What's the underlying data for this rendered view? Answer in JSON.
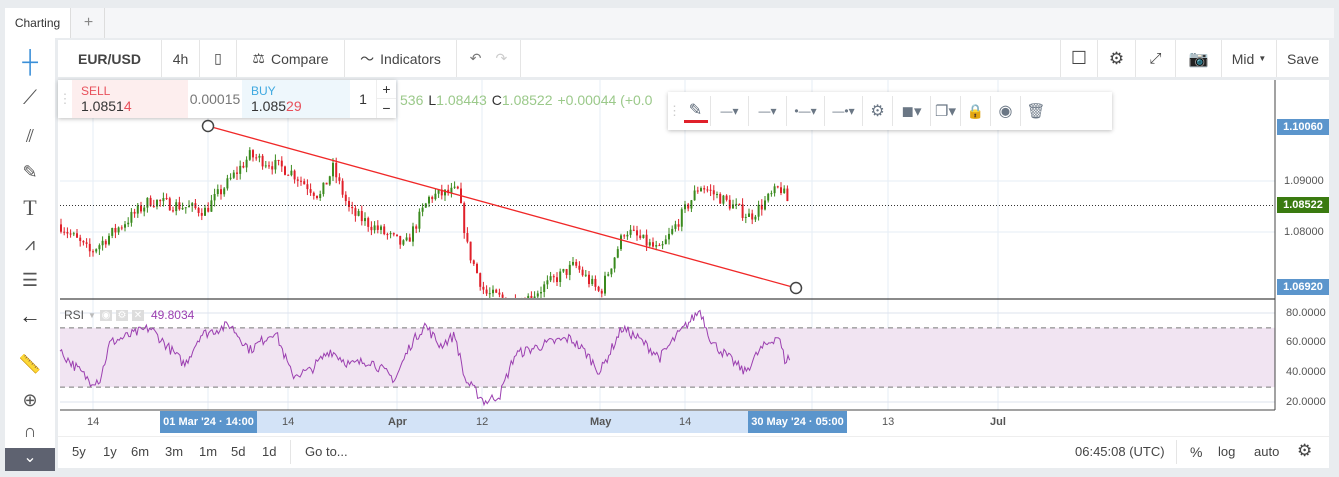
{
  "tabs": {
    "active": "Charting",
    "add": "+"
  },
  "toolbar": {
    "symbol": "EUR/USD",
    "interval": "4h",
    "compare": "Compare",
    "indicators": "Indicators",
    "price_source": "Mid",
    "save": "Save"
  },
  "trade": {
    "sell_label": "SELL",
    "sell_price_main": "1.0851",
    "sell_price_pip": "4",
    "spread": "0.00015",
    "buy_label": "BUY",
    "buy_price_main": "1.085",
    "buy_price_pip": "29",
    "quantity": "1",
    "plus": "+",
    "minus": "−"
  },
  "ohlc": {
    "partial_high": "536",
    "low_label": "L",
    "low": "1.08443",
    "close_label": "C",
    "close": "1.08522",
    "change": "+0.00044 (+0.0"
  },
  "price_axis": {
    "ticks": [
      "1.09000",
      "1.08000"
    ],
    "top_marker": "1.10060",
    "current": "1.08522",
    "bottom_marker": "1.06920"
  },
  "rsi": {
    "label": "RSI",
    "value": "49.8034",
    "ticks": [
      "80.0000",
      "60.0000",
      "40.0000",
      "20.0000"
    ],
    "upper_band": 70,
    "lower_band": 30
  },
  "time_axis": {
    "ticks": [
      "14",
      "14",
      "Apr",
      "12",
      "May",
      "14",
      "13",
      "Jul"
    ],
    "start_marker": "01 Mar '24 · 14:00",
    "end_marker": "30 May '24 · 05:00"
  },
  "bottom": {
    "ranges": [
      "5y",
      "1y",
      "6m",
      "3m",
      "1m",
      "5d",
      "1d"
    ],
    "goto": "Go to...",
    "clock": "06:45:08 (UTC)",
    "percent": "%",
    "log": "log",
    "auto": "auto"
  },
  "colors": {
    "up": "#3a8a1e",
    "down": "#e0202a",
    "trendline": "#f02828",
    "rsi": "#9b3fb0",
    "accent": "#5b95cc"
  }
}
